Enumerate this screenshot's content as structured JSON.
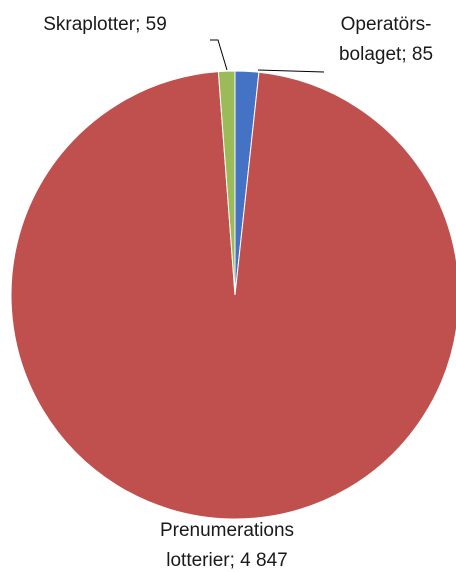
{
  "chart_data": {
    "type": "pie",
    "title": "",
    "slices": [
      {
        "name": "Operatörsbolaget",
        "value": 85,
        "color": "#4472c4",
        "label_lines": [
          "Operatörs-",
          "bolaget;  85"
        ]
      },
      {
        "name": "Prenumerations lotterier",
        "value": 4847,
        "color": "#c0504d",
        "label_lines": [
          "Prenumerations",
          "lotterier;  4 847"
        ]
      },
      {
        "name": "Skraplotter",
        "value": 59,
        "color": "#9bbb59",
        "label_lines": [
          "Skraplotter;  59"
        ]
      }
    ],
    "legend": "none",
    "start": "top, clockwise"
  }
}
